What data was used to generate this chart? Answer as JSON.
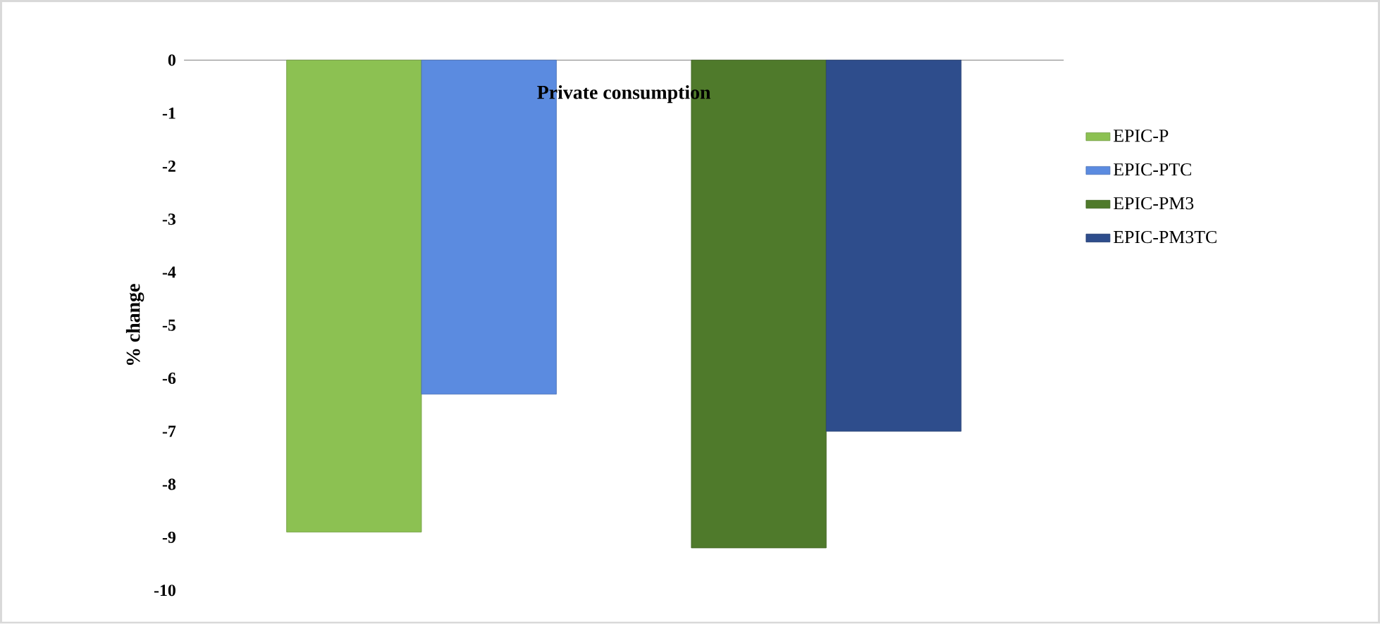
{
  "chart_data": {
    "type": "bar",
    "title": "Private consumption",
    "ylabel": "% change",
    "categories": [
      null,
      null
    ],
    "series": [
      {
        "name": "EPIC-P",
        "color": "#8cc152",
        "values": [
          -8.9,
          null
        ]
      },
      {
        "name": "EPIC-PTC",
        "color": "#5b8be0",
        "values": [
          -6.3,
          null
        ]
      },
      {
        "name": "EPIC-PM3",
        "color": "#4f7a2b",
        "values": [
          null,
          -9.2
        ]
      },
      {
        "name": "EPIC-PM3TC",
        "color": "#2e4d8c",
        "values": [
          null,
          -7.0
        ]
      }
    ],
    "ylim": [
      -10,
      0
    ],
    "yticks": [
      0,
      -1,
      -2,
      -3,
      -4,
      -5,
      -6,
      -7,
      -8,
      -9,
      -10
    ],
    "legend": "right"
  }
}
